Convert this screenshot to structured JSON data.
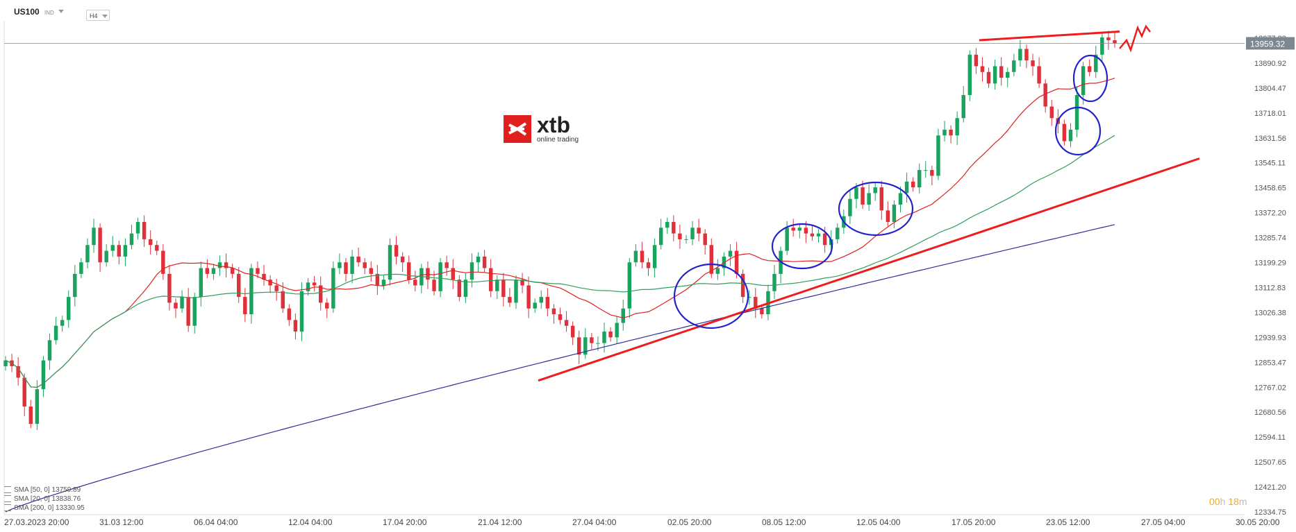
{
  "header": {
    "symbol": "US100",
    "instrument_type": "IND",
    "timeframe": "H4"
  },
  "logo": {
    "name": "xtb",
    "tagline": "online trading"
  },
  "timer": {
    "hours": "00",
    "h_unit": "h",
    "minutes": "18",
    "m_unit": "m"
  },
  "legend": [
    {
      "label": "SMA [50, 0] 13759.89",
      "color": "#2e9e5b"
    },
    {
      "label": "SMA [20, 0] 13838.76",
      "color": "#e02020"
    },
    {
      "label": "SMA [200, 0] 13330.95",
      "color": "#2c2c9a"
    }
  ],
  "chart_data": {
    "type": "candlestick",
    "title": "",
    "y_ticks": [
      "13977.28",
      "13890.92",
      "13804.47",
      "13718.01",
      "13631.56",
      "13545.11",
      "13458.65",
      "13372.20",
      "13285.74",
      "13199.29",
      "13112.83",
      "13026.38",
      "12939.93",
      "12853.47",
      "12767.02",
      "12680.56",
      "12594.11",
      "12507.65",
      "12421.20",
      "12334.75"
    ],
    "x_ticks": [
      "27.03.2023  20:00",
      "31.03  12:00",
      "06.04  04:00",
      "12.04  04:00",
      "17.04  20:00",
      "21.04  12:00",
      "27.04  04:00",
      "02.05  20:00",
      "08.05  12:00",
      "12.05  04:00",
      "17.05  20:00",
      "23.05  12:00",
      "27.05  04:00",
      "30.05  20:00"
    ],
    "ylim": [
      12334.75,
      14010
    ],
    "current_price": "13959.32",
    "current_price_color": "#7d8790",
    "colors": {
      "up": "#1aa35e",
      "down": "#e0303a",
      "sma20": "#e02020",
      "sma50": "#2e9e5b",
      "sma200": "#2c2c9a",
      "annotation_red": "#ee1c1c",
      "annotation_blue": "#2222cc"
    },
    "candles_close_path": [
      12860,
      12840,
      12800,
      12700,
      12640,
      12760,
      12860,
      12930,
      12980,
      13000,
      13080,
      13160,
      13200,
      13260,
      13320,
      13200,
      13240,
      13260,
      13220,
      13260,
      13300,
      13340,
      13280,
      13260,
      13240,
      13160,
      13060,
      13040,
      13080,
      12980,
      13080,
      13180,
      13160,
      13180,
      13200,
      13180,
      13160,
      13080,
      13020,
      13180,
      13160,
      13140,
      13120,
      13100,
      13040,
      13000,
      12960,
      13100,
      13130,
      13120,
      13060,
      13040,
      13180,
      13200,
      13160,
      13220,
      13200,
      13180,
      13160,
      13120,
      13140,
      13260,
      13220,
      13200,
      13140,
      13120,
      13180,
      13140,
      13100,
      13200,
      13180,
      13140,
      13080,
      13140,
      13200,
      13220,
      13180,
      13100,
      13140,
      13080,
      13060,
      13140,
      13120,
      13040,
      13060,
      13080,
      13040,
      13020,
      13000,
      12980,
      12940,
      12880,
      12940,
      12920,
      12920,
      12960,
      12940,
      12990,
      13040,
      13200,
      13240,
      13200,
      13180,
      13260,
      13320,
      13340,
      13300,
      13280,
      13280,
      13320,
      13300,
      13260,
      13160,
      13180,
      13220,
      13240,
      13160,
      13080,
      13080,
      13040,
      13020,
      13100,
      13160,
      13240,
      13320,
      13310,
      13320,
      13300,
      13290,
      13300,
      13260,
      13280,
      13320,
      13360,
      13420,
      13460,
      13400,
      13440,
      13460,
      13380,
      13340,
      13400,
      13440,
      13480,
      13460,
      13520,
      13520,
      13500,
      13640,
      13660,
      13640,
      13700,
      13780,
      13920,
      13880,
      13860,
      13820,
      13880,
      13840,
      13860,
      13900,
      13940,
      13900,
      13880,
      13820,
      13740,
      13700,
      13680,
      13620,
      13660,
      13780,
      13880,
      13860,
      13920,
      13980,
      13970,
      13959
    ]
  }
}
